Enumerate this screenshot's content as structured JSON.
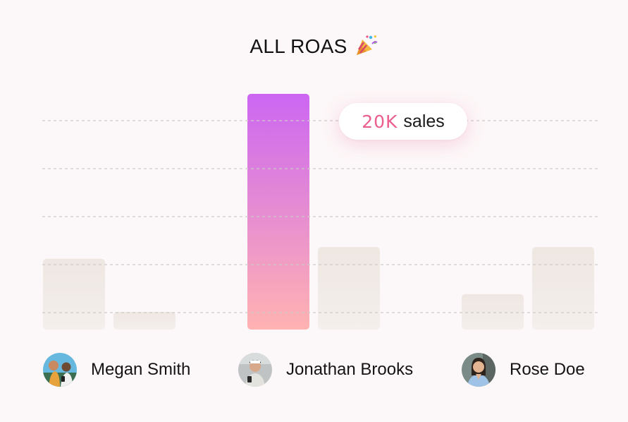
{
  "title": "ALL ROAS",
  "title_icon": "party-popper-icon",
  "highlight": {
    "value": "20K",
    "unit": "sales"
  },
  "people": [
    {
      "name": "Megan Smith",
      "avatar": "avatar-photo"
    },
    {
      "name": "Jonathan Brooks",
      "avatar": "avatar-photo"
    },
    {
      "name": "Rose Doe",
      "avatar": "avatar-photo"
    }
  ],
  "colors": {
    "bar_default": "#efe8e3",
    "bar_highlight_top": "#cc66f2",
    "bar_highlight_bottom": "#ffb3b1",
    "gridline": "#cfc9c9",
    "highlight_text": "#ea5d8f"
  },
  "chart_data": {
    "type": "bar",
    "categories": [
      "Megan Smith",
      "Jonathan Brooks",
      "Rose Doe"
    ],
    "series": [
      {
        "values": [
          6,
          20,
          3
        ]
      },
      {
        "values": [
          1.5,
          7,
          7
        ]
      }
    ],
    "highlighted_bar": {
      "series": 0,
      "category": 1
    },
    "ylim": [
      0,
      20
    ],
    "gridlines": true,
    "grid_style": "dashed"
  }
}
